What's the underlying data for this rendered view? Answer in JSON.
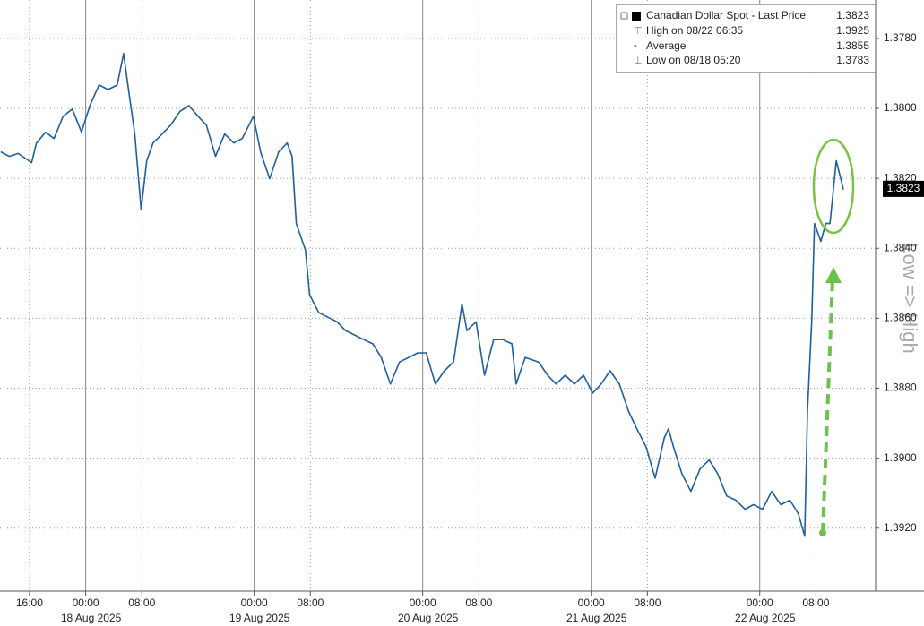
{
  "chart_data": {
    "type": "line",
    "inverted": true,
    "grid": true,
    "ylim": [
      1.3769,
      1.3938
    ],
    "yticks": [
      {
        "value": 1.378,
        "label": "1.3780"
      },
      {
        "value": 1.38,
        "label": "1.3800"
      },
      {
        "value": 1.382,
        "label": "1.3820"
      },
      {
        "value": 1.384,
        "label": "1.3840"
      },
      {
        "value": 1.386,
        "label": "1.3860"
      },
      {
        "value": 1.388,
        "label": "1.3880"
      },
      {
        "value": 1.39,
        "label": "1.3900"
      },
      {
        "value": 1.392,
        "label": "1.3920"
      }
    ],
    "xlim": [
      -12.2,
      112.5
    ],
    "xticks": [
      {
        "value": -8,
        "label": "16:00"
      },
      {
        "value": 0,
        "label": "00:00"
      },
      {
        "value": 8,
        "label": "08:00"
      },
      {
        "value": 24,
        "label": "00:00"
      },
      {
        "value": 32,
        "label": "08:00"
      },
      {
        "value": 48,
        "label": "00:00"
      },
      {
        "value": 56,
        "label": "08:00"
      },
      {
        "value": 72,
        "label": "00:00"
      },
      {
        "value": 80,
        "label": "08:00"
      },
      {
        "value": 96,
        "label": "00:00"
      },
      {
        "value": 104,
        "label": "08:00"
      }
    ],
    "date_labels": [
      {
        "value": 0,
        "label": "18 Aug 2025"
      },
      {
        "value": 24,
        "label": "19 Aug 2025"
      },
      {
        "value": 48,
        "label": "20 Aug 2025"
      },
      {
        "value": 72,
        "label": "21 Aug 2025"
      },
      {
        "value": 96,
        "label": "22 Aug 2025"
      }
    ],
    "x": [
      -12.1,
      -10.9,
      -9.6,
      -7.7,
      -7.0,
      -5.7,
      -4.5,
      -3.2,
      -1.9,
      -0.6,
      0.6,
      1.9,
      3.2,
      4.5,
      5.4,
      6.1,
      7.0,
      7.9,
      8.7,
      9.6,
      10.9,
      12.1,
      13.4,
      14.7,
      16.0,
      17.2,
      18.5,
      19.8,
      21.1,
      22.3,
      23.9,
      24.9,
      26.2,
      27.5,
      28.7,
      29.4,
      30.0,
      31.3,
      31.9,
      33.2,
      34.5,
      35.8,
      37.0,
      38.3,
      39.6,
      40.9,
      42.1,
      43.4,
      44.7,
      46.0,
      47.3,
      48.5,
      49.8,
      51.1,
      52.4,
      53.6,
      54.3,
      55.6,
      56.8,
      58.1,
      59.4,
      60.7,
      61.3,
      62.6,
      64.5,
      65.8,
      67.0,
      68.3,
      69.6,
      70.9,
      72.2,
      73.4,
      74.7,
      76.0,
      77.3,
      78.5,
      79.8,
      81.1,
      82.4,
      83.0,
      83.7,
      84.9,
      86.2,
      87.5,
      88.8,
      90.0,
      91.3,
      92.6,
      93.9,
      95.1,
      96.4,
      97.7,
      99.0,
      100.3,
      101.5,
      102.4,
      102.8,
      103.4,
      103.8,
      104.7,
      105.4,
      106.0,
      106.9,
      107.7,
      107.9
    ],
    "series": [
      {
        "name": "Canadian Dollar Spot - Last Price",
        "color": "#1f5fa0",
        "values": [
          1.38124,
          1.38137,
          1.38129,
          1.38155,
          1.38099,
          1.38068,
          1.38086,
          1.38022,
          1.38002,
          1.38068,
          1.37992,
          1.37933,
          1.37946,
          1.37933,
          1.37843,
          1.37946,
          1.38073,
          1.3829,
          1.3815,
          1.38099,
          1.38073,
          1.38048,
          1.38009,
          1.37992,
          1.38022,
          1.38048,
          1.38137,
          1.38073,
          1.38099,
          1.38086,
          1.38022,
          1.38124,
          1.38201,
          1.38124,
          1.38099,
          1.38137,
          1.38329,
          1.38405,
          1.38533,
          1.38584,
          1.38597,
          1.3861,
          1.38635,
          1.38648,
          1.38661,
          1.38673,
          1.38712,
          1.38788,
          1.38725,
          1.38712,
          1.38699,
          1.38699,
          1.38788,
          1.3875,
          1.38725,
          1.38559,
          1.38635,
          1.3861,
          1.38763,
          1.38661,
          1.38661,
          1.38673,
          1.38788,
          1.38712,
          1.38725,
          1.38763,
          1.38788,
          1.38763,
          1.38788,
          1.38763,
          1.38814,
          1.38788,
          1.3875,
          1.38788,
          1.38865,
          1.38916,
          1.38967,
          1.39057,
          1.38942,
          1.38916,
          1.38967,
          1.39044,
          1.39095,
          1.39031,
          1.39005,
          1.39044,
          1.39108,
          1.3912,
          1.39146,
          1.39133,
          1.39146,
          1.39095,
          1.39133,
          1.3912,
          1.39159,
          1.39223,
          1.38865,
          1.3861,
          1.38329,
          1.3838,
          1.38329,
          1.38329,
          1.3815,
          1.38214,
          1.38232
        ]
      }
    ],
    "legend": {
      "position": "top-right",
      "items": [
        {
          "label": "Canadian Dollar Spot - Last Price",
          "value": 1.3823
        },
        {
          "label": "High on 08/22 06:35",
          "value": 1.3925
        },
        {
          "label": "Average",
          "value": 1.3855
        },
        {
          "label": "Low on 08/18 05:20",
          "value": 1.3783
        }
      ]
    },
    "annotation": "Low => High"
  }
}
